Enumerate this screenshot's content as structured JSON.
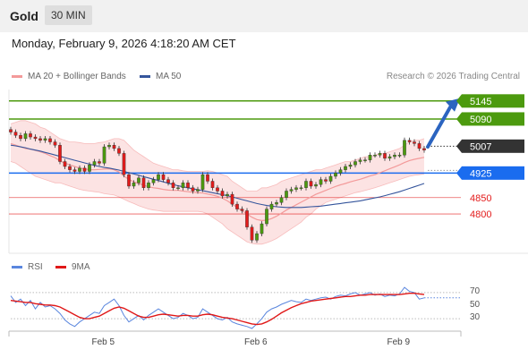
{
  "header": {
    "symbol": "Gold",
    "timeframe": "30 MIN"
  },
  "datetime": "Monday, February 9, 2026 4:18:20 AM CET",
  "credit": "Research © 2026 Trading Central",
  "colors": {
    "bollinger": "#f39a9a",
    "ma50": "#35559c",
    "resistance": "#4c9a0e",
    "support": "#1a6cef",
    "level_red": "#e31b1b",
    "current": "#333333",
    "candle_up": "#4c9a0e",
    "candle_down": "#e31b1b",
    "arrow": "#2b64c0",
    "rsi": "#5a86de",
    "rsi_ma": "#e01818"
  },
  "chart_data": [
    {
      "type": "candlestick",
      "legend": {
        "bollinger": "MA 20 + Bollinger Bands",
        "ma50": "MA 50"
      },
      "ylim": [
        4680,
        5180
      ],
      "levels": [
        {
          "value": 5145,
          "label": "5145",
          "kind": "resistance"
        },
        {
          "value": 5090,
          "label": "5090",
          "kind": "resistance"
        },
        {
          "value": 5007,
          "label": "5007",
          "kind": "current"
        },
        {
          "value": 4925,
          "label": "4925",
          "kind": "support"
        },
        {
          "value": 4850,
          "label": "4850",
          "kind": "minor"
        },
        {
          "value": 4800,
          "label": "4800",
          "kind": "minor"
        }
      ],
      "projection": {
        "from": 5005,
        "to": 5145
      },
      "close": [
        5050,
        5040,
        5030,
        5045,
        5035,
        5030,
        5025,
        5030,
        5020,
        5010,
        4960,
        4945,
        4935,
        4930,
        4940,
        4930,
        4950,
        4960,
        4955,
        5005,
        5010,
        5000,
        4985,
        4920,
        4885,
        4895,
        4910,
        4880,
        4895,
        4905,
        4920,
        4905,
        4895,
        4880,
        4880,
        4895,
        4880,
        4870,
        4875,
        4920,
        4900,
        4880,
        4870,
        4855,
        4860,
        4830,
        4815,
        4810,
        4760,
        4720,
        4740,
        4770,
        4815,
        4830,
        4835,
        4850,
        4870,
        4875,
        4880,
        4880,
        4900,
        4885,
        4890,
        4905,
        4900,
        4915,
        4925,
        4935,
        4945,
        4950,
        4960,
        4965,
        4965,
        4980,
        4980,
        4985,
        4970,
        4975,
        4980,
        4980,
        5025,
        5020,
        5015,
        5000,
        4995
      ],
      "ma20": [
        5015,
        5010,
        5005,
        5000,
        4998,
        4994,
        4990,
        4985,
        4978,
        4972,
        4962,
        4955,
        4950,
        4945,
        4940,
        4938,
        4935,
        4935,
        4936,
        4937,
        4938,
        4935,
        4928,
        4916,
        4905,
        4898,
        4893,
        4888,
        4883,
        4880,
        4878,
        4875,
        4873,
        4872,
        4872,
        4870,
        4868,
        4866,
        4865,
        4864,
        4861,
        4858,
        4854,
        4848,
        4840,
        4830,
        4820,
        4810,
        4800,
        4790,
        4783,
        4780,
        4781,
        4786,
        4793,
        4802,
        4812,
        4820,
        4828,
        4836,
        4844,
        4852,
        4860,
        4866,
        4872,
        4878,
        4884,
        4889,
        4893,
        4898,
        4902,
        4906,
        4911,
        4916,
        4920,
        4926,
        4932,
        4938,
        4944,
        4950,
        4957,
        4963,
        4967,
        4970,
        4973
      ],
      "bb_upper": [
        5075,
        5080,
        5085,
        5085,
        5080,
        5075,
        5065,
        5060,
        5050,
        5040,
        5030,
        5025,
        5020,
        5020,
        5018,
        5015,
        5015,
        5015,
        5018,
        5020,
        5025,
        5030,
        5030,
        5025,
        5010,
        4995,
        4985,
        4975,
        4965,
        4955,
        4950,
        4945,
        4940,
        4935,
        4935,
        4932,
        4930,
        4930,
        4930,
        4930,
        4932,
        4930,
        4925,
        4920,
        4915,
        4900,
        4890,
        4880,
        4870,
        4870,
        4870,
        4880,
        4880,
        4885,
        4890,
        4900,
        4905,
        4910,
        4915,
        4920,
        4925,
        4930,
        4935,
        4935,
        4940,
        4945,
        4950,
        4955,
        4960,
        4960,
        4965,
        4970,
        4975,
        4975,
        4980,
        4985,
        4985,
        4990,
        4995,
        5000,
        5010,
        5020,
        5025,
        5025,
        5030
      ],
      "bb_lower": [
        4960,
        4955,
        4945,
        4935,
        4925,
        4915,
        4910,
        4905,
        4900,
        4895,
        4895,
        4890,
        4885,
        4880,
        4875,
        4872,
        4870,
        4868,
        4866,
        4862,
        4860,
        4858,
        4852,
        4845,
        4838,
        4832,
        4825,
        4820,
        4815,
        4812,
        4810,
        4808,
        4808,
        4808,
        4808,
        4808,
        4808,
        4808,
        4808,
        4806,
        4800,
        4790,
        4780,
        4770,
        4755,
        4745,
        4735,
        4725,
        4715,
        4710,
        4708,
        4708,
        4712,
        4718,
        4725,
        4735,
        4745,
        4755,
        4765,
        4775,
        4790,
        4800,
        4815,
        4825,
        4835,
        4840,
        4845,
        4850,
        4855,
        4860,
        4865,
        4868,
        4872,
        4876,
        4880,
        4885,
        4890,
        4895,
        4900,
        4905,
        4910,
        4915,
        4918,
        4920,
        4922
      ],
      "ma50": [
        5010,
        5008,
        5005,
        5002,
        4998,
        4995,
        4992,
        4988,
        4984,
        4980,
        4976,
        4972,
        4968,
        4964,
        4960,
        4956,
        4952,
        4948,
        4945,
        4942,
        4940,
        4937,
        4934,
        4930,
        4926,
        4922,
        4918,
        4914,
        4910,
        4906,
        4902,
        4898,
        4894,
        4890,
        4886,
        4883,
        4880,
        4877,
        4874,
        4871,
        4868,
        4865,
        4862,
        4859,
        4856,
        4852,
        4848,
        4844,
        4840,
        4836,
        4832,
        4829,
        4826,
        4824,
        4822,
        4821,
        4820,
        4820,
        4820,
        4820,
        4821,
        4822,
        4823,
        4824,
        4826,
        4828,
        4830,
        4832,
        4834,
        4836,
        4838,
        4840,
        4843,
        4846,
        4849,
        4852,
        4856,
        4860,
        4864,
        4868,
        4873,
        4878,
        4883,
        4888,
        4893
      ],
      "x_ticks": [
        {
          "label": "Feb 5",
          "index": 19
        },
        {
          "label": "Feb 6",
          "index": 50
        },
        {
          "label": "Feb 9",
          "index": 79
        }
      ]
    },
    {
      "type": "line",
      "legend": {
        "rsi": "RSI",
        "ma": "9MA"
      },
      "ylim": [
        15,
        85
      ],
      "y_ticks": [
        70,
        50,
        30
      ],
      "ref_lines": [
        70,
        30
      ],
      "rsi": [
        65,
        55,
        60,
        50,
        58,
        45,
        55,
        48,
        50,
        45,
        38,
        28,
        22,
        18,
        25,
        30,
        35,
        40,
        38,
        50,
        55,
        60,
        50,
        35,
        25,
        30,
        35,
        28,
        35,
        40,
        45,
        40,
        35,
        30,
        32,
        38,
        35,
        30,
        32,
        45,
        40,
        35,
        30,
        28,
        32,
        25,
        22,
        20,
        18,
        15,
        22,
        30,
        40,
        45,
        48,
        52,
        55,
        58,
        56,
        55,
        60,
        58,
        60,
        62,
        63,
        60,
        64,
        66,
        65,
        68,
        70,
        66,
        68,
        70,
        66,
        68,
        64,
        66,
        65,
        68,
        78,
        72,
        70,
        60,
        62
      ],
      "ma": [
        58,
        57,
        56,
        55,
        55,
        53,
        52,
        51,
        51,
        50,
        48,
        44,
        40,
        36,
        32,
        30,
        30,
        32,
        34,
        38,
        42,
        46,
        48,
        46,
        42,
        38,
        34,
        32,
        32,
        34,
        36,
        37,
        36,
        35,
        34,
        35,
        35,
        34,
        34,
        36,
        37,
        36,
        34,
        32,
        31,
        30,
        28,
        26,
        24,
        22,
        21,
        22,
        25,
        29,
        34,
        39,
        43,
        47,
        50,
        53,
        55,
        57,
        58,
        59,
        60,
        61,
        62,
        63,
        64,
        64,
        65,
        66,
        66,
        67,
        67,
        67,
        67,
        67,
        67,
        67,
        68,
        69,
        69,
        68,
        67
      ],
      "dotted_after": 62
    }
  ]
}
